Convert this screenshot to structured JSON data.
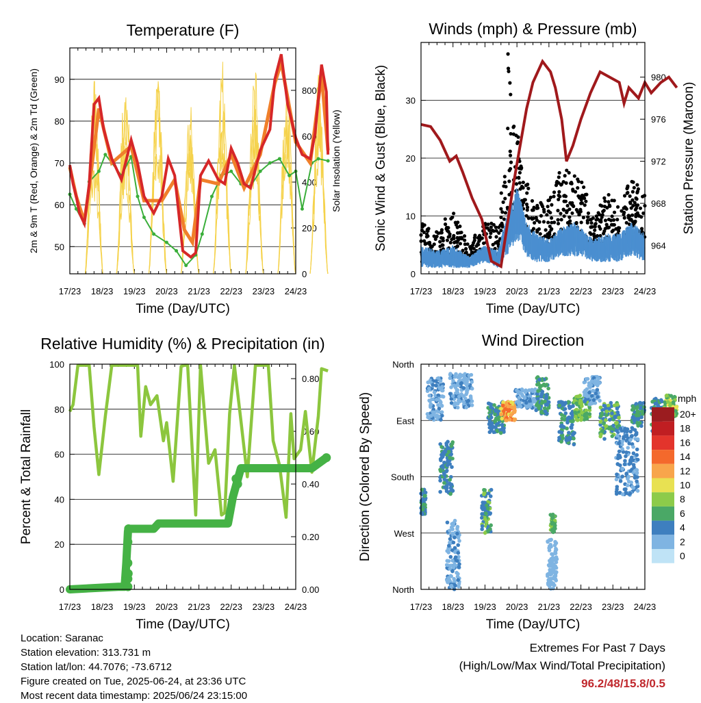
{
  "colors": {
    "temp2m": "#d62728",
    "temp9m": "#f07f2a",
    "dewpoint": "#3aae3a",
    "solar": "#f5d24b",
    "wind": "#4b8fd0",
    "gust": "#000000",
    "pressure": "#a0191c",
    "rh": "#8cc63e",
    "precip": "#45b245",
    "extremes": "#c0282d"
  },
  "chart_data": [
    {
      "id": "temperature",
      "type": "line",
      "title": "Temperature (F)",
      "xlabel": "Time (Day/UTC)",
      "ylabel": "2m & 9m T (Red, Orange) & 2m Td (Green)",
      "y2label": "Solar Insolation (Yellow)",
      "x_ticks": [
        "17/23",
        "18/23",
        "19/23",
        "20/23",
        "21/23",
        "22/23",
        "23/23",
        "24/23"
      ],
      "ylim": [
        43.5,
        97.5
      ],
      "y_ticks": [
        50,
        60,
        70,
        80,
        90
      ],
      "y2lim": [
        0,
        985
      ],
      "y2_ticks": [
        0,
        200,
        400,
        600,
        800
      ],
      "series": [
        {
          "name": "2m T",
          "x": [
            0,
            0.1,
            0.2,
            0.3,
            0.45,
            0.6,
            0.75,
            0.9,
            1.05,
            1.3,
            1.6,
            1.9,
            2.1,
            2.3,
            2.6,
            2.85,
            3.05,
            3.25,
            3.5,
            3.75,
            3.9,
            4.05,
            4.3,
            4.6,
            4.8,
            5.0,
            5.2,
            5.4,
            5.6,
            5.9,
            6.2,
            6.35,
            6.55,
            6.75,
            7.0,
            7.2,
            7.45,
            7.6,
            7.8,
            7.95,
            8.0
          ],
          "y": [
            69.5,
            65,
            62,
            58,
            55.5,
            65,
            84,
            85.5,
            78,
            71,
            66,
            75.5,
            70,
            62,
            58,
            62,
            71,
            67,
            49,
            47.5,
            48.5,
            67,
            70.5,
            66,
            65,
            73.5,
            70,
            65,
            64,
            73,
            78,
            90,
            96,
            84,
            76,
            72,
            71,
            77,
            93.5,
            87,
            72
          ]
        },
        {
          "name": "9m T",
          "x": [
            0,
            0.2,
            0.45,
            0.6,
            0.9,
            1.3,
            1.9,
            2.3,
            2.85,
            3.25,
            3.55,
            3.8,
            4.05,
            4.6,
            5.0,
            5.4,
            5.9,
            6.35,
            6.55,
            7.0,
            7.45,
            7.8,
            8.0
          ],
          "y": [
            69,
            62,
            56,
            64,
            83,
            70,
            74,
            61,
            61,
            66,
            54,
            51,
            66,
            65,
            72,
            64,
            72,
            89,
            94,
            75,
            70,
            91,
            73
          ]
        },
        {
          "name": "2m Td",
          "x": [
            0,
            0.2,
            0.45,
            0.6,
            0.9,
            1.1,
            1.3,
            1.6,
            1.9,
            2.1,
            2.3,
            2.6,
            3.0,
            3.3,
            3.6,
            3.9,
            4.1,
            4.4,
            4.7,
            5.0,
            5.3,
            5.6,
            5.9,
            6.2,
            6.5,
            6.8,
            7.0,
            7.2,
            7.5,
            7.7,
            8.0
          ],
          "y": [
            62.5,
            59,
            55.5,
            65.5,
            68,
            72,
            70,
            67,
            71.5,
            62,
            57,
            53,
            51,
            49,
            45.5,
            48,
            53,
            62,
            67,
            68,
            65,
            64.5,
            68,
            70,
            71,
            67,
            68,
            59,
            70,
            71,
            70.5
          ]
        }
      ],
      "solar": {
        "peak_x": [
          0.75,
          1.72,
          2.72,
          3.72,
          4.72,
          5.72,
          6.72,
          7.72
        ],
        "peak_y": [
          930,
          900,
          960,
          820,
          965,
          940,
          990,
          920
        ],
        "width": 0.55
      }
    },
    {
      "id": "winds_pressure",
      "type": "scatter",
      "title": "Winds (mph) & Pressure (mb)",
      "xlabel": "Time (Day/UTC)",
      "ylabel": "Sonic Wind & Gust (Blue, Black)",
      "y2label": "Station Pressure (Maroon)",
      "x_ticks": [
        "17/23",
        "18/23",
        "19/23",
        "20/23",
        "21/23",
        "22/23",
        "23/23",
        "24/23"
      ],
      "ylim": [
        0,
        40
      ],
      "y_ticks": [
        0,
        10,
        20,
        30
      ],
      "y2lim": [
        961.3,
        983.3
      ],
      "y2_ticks": [
        964,
        968,
        972,
        976,
        980
      ],
      "pressure": {
        "name": "Station Pressure",
        "x": [
          0,
          0.3,
          0.6,
          0.9,
          1.1,
          1.3,
          1.6,
          1.9,
          2.2,
          2.5,
          2.7,
          2.9,
          3.1,
          3.3,
          3.5,
          3.8,
          4.05,
          4.2,
          4.4,
          4.55,
          4.75,
          5.0,
          5.3,
          5.6,
          5.9,
          6.2,
          6.35,
          6.5,
          6.8,
          7.0,
          7.2,
          7.5,
          7.75,
          8.0
        ],
        "y": [
          975.5,
          975.3,
          974.0,
          972.0,
          972.5,
          971.0,
          968.5,
          966.5,
          962.5,
          962.0,
          966.0,
          970.0,
          973.5,
          977.0,
          979.5,
          981.5,
          980.5,
          979.0,
          976.0,
          972.0,
          973.5,
          976.0,
          978.5,
          980.5,
          980.0,
          979.5,
          977.5,
          979.0,
          978.0,
          979.5,
          978.5,
          979.5,
          980.0,
          979.0
        ]
      },
      "wind_envelope": {
        "name": "Sonic Wind",
        "x": [
          0,
          0.5,
          1,
          1.5,
          2,
          2.4,
          2.8,
          3.0,
          3.3,
          3.6,
          4.0,
          4.4,
          4.8,
          5.0,
          5.4,
          5.8,
          6.2,
          6.6,
          7.0,
          7.4,
          7.8,
          8.0
        ],
        "lo": [
          1,
          1,
          1,
          1,
          2,
          1,
          4,
          6,
          3,
          2,
          2,
          3,
          3,
          3,
          2,
          2,
          2,
          3,
          2,
          3,
          3,
          2
        ],
        "hi": [
          5,
          4,
          5,
          3,
          5,
          4,
          13,
          15,
          9,
          7,
          6,
          8,
          9,
          8,
          6,
          7,
          7,
          9,
          7,
          8,
          10,
          8
        ]
      },
      "gust_envelope": {
        "name": "Gust",
        "x": [
          0,
          0.5,
          1,
          1.5,
          2,
          2.4,
          2.8,
          3.0,
          3.3,
          3.6,
          4.0,
          4.4,
          4.8,
          5.0,
          5.4,
          5.8,
          6.2,
          6.6,
          7.0,
          7.4,
          7.8,
          8.0
        ],
        "lo": [
          2,
          2,
          3,
          2,
          3,
          2,
          8,
          12,
          6,
          4,
          4,
          5,
          5,
          5,
          4,
          4,
          4,
          6,
          4,
          5,
          6,
          4
        ],
        "hi": [
          9,
          8,
          11,
          5,
          10,
          8,
          30,
          25,
          16,
          12,
          13,
          19,
          17,
          17,
          10,
          14,
          12,
          17,
          14,
          16,
          23,
          15
        ]
      }
    },
    {
      "id": "humidity_precip",
      "type": "line",
      "title": "Relative Humidity (%) & Precipitation (in)",
      "xlabel": "Time (Day/UTC)",
      "ylabel": "Percent & Total Rainfall",
      "x_ticks": [
        "17/23",
        "18/23",
        "19/23",
        "20/23",
        "21/23",
        "22/23",
        "23/23",
        "24/23"
      ],
      "ylim": [
        0,
        100
      ],
      "y_ticks": [
        0,
        20,
        40,
        60,
        80,
        100
      ],
      "y2lim": [
        0,
        0.855
      ],
      "y2_ticks": [
        "0.00",
        "0.20",
        "0.40",
        "0.60",
        "0.80"
      ],
      "series": [
        {
          "name": "Relative Humidity",
          "x": [
            0,
            0.1,
            0.25,
            0.4,
            0.5,
            0.6,
            0.75,
            0.9,
            1.1,
            1.3,
            1.5,
            1.7,
            1.9,
            2.1,
            2.2,
            2.35,
            2.5,
            2.7,
            2.9,
            3.0,
            3.2,
            3.45,
            3.55,
            3.65,
            3.9,
            4.05,
            4.3,
            4.5,
            4.7,
            4.8,
            4.95,
            5.1,
            5.3,
            5.5,
            5.75,
            5.95,
            6.15,
            6.3,
            6.5,
            6.7,
            6.85,
            6.95,
            7.15,
            7.3,
            7.5,
            7.7,
            7.8,
            8.0
          ],
          "y": [
            79,
            82,
            99.5,
            99.5,
            99.5,
            99.5,
            72,
            51,
            77,
            99.5,
            99.5,
            99.5,
            99.5,
            99.5,
            68,
            90,
            82,
            86,
            66,
            74,
            48,
            99,
            99.5,
            99.5,
            33,
            99.5,
            56,
            62,
            33,
            34,
            78,
            99.5,
            75,
            50,
            99.5,
            99.5,
            99.5,
            66,
            55,
            32,
            78,
            58,
            62,
            79,
            52,
            77,
            98,
            97
          ]
        },
        {
          "name": "Total Precipitation",
          "x": [
            0,
            1.5,
            1.7,
            1.75,
            1.8,
            1.82,
            2.0,
            2.6,
            2.75,
            3.5,
            4.9,
            5.05,
            5.3,
            6.5,
            7.5,
            7.95
          ],
          "y": [
            0,
            0.01,
            0.01,
            0.1,
            0.22,
            0.23,
            0.23,
            0.23,
            0.25,
            0.25,
            0.25,
            0.35,
            0.46,
            0.46,
            0.46,
            0.5
          ]
        }
      ]
    },
    {
      "id": "wind_direction",
      "type": "scatter",
      "title": "Wind Direction",
      "xlabel": "Time (Day/UTC)",
      "ylabel": "Direction (Colored By Speed)",
      "x_ticks": [
        "17/23",
        "18/23",
        "19/23",
        "20/23",
        "21/23",
        "22/23",
        "23/23",
        "24/23"
      ],
      "y_ticks": [
        "North",
        "West",
        "South",
        "East",
        "North"
      ],
      "ylim": [
        0,
        360
      ],
      "legend": {
        "title": "mph",
        "labels": [
          "20+",
          "18",
          "16",
          "14",
          "12",
          "10",
          "8",
          "6",
          "4",
          "2",
          "0"
        ],
        "colors": [
          "#9b1c1f",
          "#c01e22",
          "#e3342c",
          "#f4692c",
          "#f8a54b",
          "#e8e152",
          "#8ccb4a",
          "#4aa866",
          "#3e7fbf",
          "#7fb4e2",
          "#bfe3f6"
        ]
      },
      "clusters": [
        {
          "x0": 0.2,
          "x1": 0.7,
          "y0": 270,
          "y1": 340,
          "speeds": [
            1,
            2,
            3
          ]
        },
        {
          "x0": 0.9,
          "x1": 1.6,
          "y0": 290,
          "y1": 345,
          "speeds": [
            1,
            2,
            4
          ]
        },
        {
          "x0": 0.0,
          "x1": 0.15,
          "y0": 120,
          "y1": 160,
          "speeds": [
            3,
            4,
            5
          ]
        },
        {
          "x0": 0.6,
          "x1": 1.0,
          "y0": 150,
          "y1": 240,
          "speeds": [
            3,
            4,
            5
          ]
        },
        {
          "x0": 0.8,
          "x1": 1.2,
          "y0": 0,
          "y1": 110,
          "speeds": [
            1,
            2,
            3
          ]
        },
        {
          "x0": 1.9,
          "x1": 2.2,
          "y0": 90,
          "y1": 160,
          "speeds": [
            3,
            4,
            6,
            7
          ]
        },
        {
          "x0": 2.1,
          "x1": 2.6,
          "y0": 250,
          "y1": 300,
          "speeds": [
            3,
            4,
            6
          ]
        },
        {
          "x0": 2.5,
          "x1": 2.95,
          "y0": 270,
          "y1": 300,
          "speeds": [
            9,
            11,
            12,
            13
          ]
        },
        {
          "x0": 2.95,
          "x1": 3.8,
          "y0": 290,
          "y1": 320,
          "speeds": [
            1,
            2,
            3
          ]
        },
        {
          "x0": 3.6,
          "x1": 4.0,
          "y0": 280,
          "y1": 340,
          "speeds": [
            4,
            5,
            6
          ]
        },
        {
          "x0": 4.05,
          "x1": 4.2,
          "y0": 90,
          "y1": 120,
          "speeds": [
            5,
            6,
            7
          ]
        },
        {
          "x0": 3.95,
          "x1": 4.25,
          "y0": 0,
          "y1": 80,
          "speeds": [
            1,
            2
          ]
        },
        {
          "x0": 4.3,
          "x1": 4.8,
          "y0": 230,
          "y1": 300,
          "speeds": [
            3,
            4,
            5
          ]
        },
        {
          "x0": 4.8,
          "x1": 5.3,
          "y0": 270,
          "y1": 310,
          "speeds": [
            5,
            6,
            7,
            8
          ]
        },
        {
          "x0": 5.1,
          "x1": 5.6,
          "y0": 295,
          "y1": 340,
          "speeds": [
            1,
            2,
            3
          ]
        },
        {
          "x0": 5.6,
          "x1": 6.2,
          "y0": 240,
          "y1": 300,
          "speeds": [
            3,
            4,
            6,
            7
          ]
        },
        {
          "x0": 6.1,
          "x1": 6.8,
          "y0": 150,
          "y1": 260,
          "speeds": [
            2,
            3,
            4
          ]
        },
        {
          "x0": 6.6,
          "x1": 7.0,
          "y0": 260,
          "y1": 300,
          "speeds": [
            3,
            4,
            5,
            6
          ]
        },
        {
          "x0": 7.2,
          "x1": 7.6,
          "y0": 250,
          "y1": 305,
          "speeds": [
            3,
            4,
            6
          ]
        },
        {
          "x0": 7.6,
          "x1": 8.0,
          "y0": 275,
          "y1": 310,
          "speeds": [
            6,
            7,
            8,
            9
          ]
        }
      ]
    }
  ],
  "info": {
    "location": "Location: Saranac",
    "elevation": "Station elevation: 313.731 m",
    "latlon": "Station lat/lon: 44.7076; -73.6712",
    "created": "Figure created on Tue, 2025-06-24, at 23:36 UTC",
    "recent": "Most recent data timestamp: 2025/06/24 23:15:00"
  },
  "extremes": {
    "line1": "Extremes For Past 7 Days",
    "line2": "(High/Low/Max Wind/Total Precipitation)",
    "values": "96.2/48/15.8/0.5"
  }
}
